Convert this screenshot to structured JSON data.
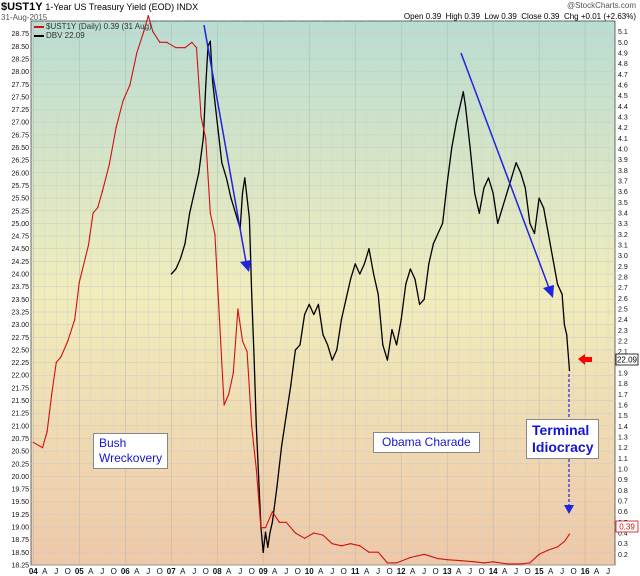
{
  "header": {
    "symbol": "$UST1Y",
    "title": "1-Year US Treasury Yield (EOD) INDX",
    "date": "31-Aug-2015",
    "source": "@StockCharts.com",
    "quote": "Open 0.39  High 0.39  Low 0.39  Close 0.39  Chg +0.01 (+2.63%)"
  },
  "legend": {
    "ust": "$UST1Y (Daily) 0.39 (31 Aug)",
    "dbv": "DBV 22.09"
  },
  "annotations": {
    "bush": [
      "Bush",
      "Wreckovery"
    ],
    "obama": "Obama Charade",
    "terminal": [
      "Terminal",
      "Idiocracy"
    ]
  },
  "last_values": {
    "dbv": "22.09",
    "ust": "0.39"
  },
  "colors": {
    "ust_line": "#d21010",
    "dbv_line": "#000000",
    "arrow": "#1f24e0",
    "marker": "#ff0000",
    "annotation_text": "#1515d0"
  },
  "chart_data": {
    "type": "line",
    "title": "$UST1Y 1-Year US Treasury Yield (EOD) INDX",
    "x_ticks": [
      "04",
      "A",
      "J",
      "O",
      "05",
      "A",
      "J",
      "O",
      "06",
      "A",
      "J",
      "O",
      "07",
      "A",
      "J",
      "O",
      "08",
      "A",
      "J",
      "O",
      "09",
      "A",
      "J",
      "O",
      "10",
      "A",
      "J",
      "O",
      "11",
      "A",
      "J",
      "O",
      "12",
      "A",
      "J",
      "O",
      "13",
      "A",
      "J",
      "O",
      "14",
      "A",
      "J",
      "O",
      "15",
      "A",
      "J",
      "O",
      "16",
      "A",
      "J"
    ],
    "left_axis": {
      "ylim": [
        18.25,
        29.0
      ],
      "ticks": [
        "18.25",
        "18.50",
        "18.75",
        "19.00",
        "19.25",
        "19.50",
        "19.75",
        "20.00",
        "20.25",
        "20.50",
        "20.75",
        "21.00",
        "21.25",
        "21.50",
        "21.75",
        "22.00",
        "22.25",
        "22.50",
        "22.75",
        "23.00",
        "23.25",
        "23.50",
        "23.75",
        "24.00",
        "24.25",
        "24.50",
        "24.75",
        "25.00",
        "25.25",
        "25.50",
        "25.75",
        "26.00",
        "26.25",
        "26.50",
        "26.75",
        "27.00",
        "27.25",
        "27.50",
        "27.75",
        "28.00",
        "28.25",
        "28.50",
        "28.75"
      ]
    },
    "right_axis": {
      "ylim": [
        0.1,
        5.2
      ],
      "ticks": [
        "0.2",
        "0.3",
        "0.4",
        "0.5",
        "0.6",
        "0.7",
        "0.8",
        "0.9",
        "1.0",
        "1.1",
        "1.2",
        "1.3",
        "1.4",
        "1.5",
        "1.6",
        "1.7",
        "1.8",
        "1.9",
        "2.0",
        "2.1",
        "2.2",
        "2.3",
        "2.4",
        "2.5",
        "2.6",
        "2.7",
        "2.8",
        "2.9",
        "3.0",
        "3.1",
        "3.2",
        "3.3",
        "3.4",
        "3.5",
        "3.6",
        "3.7",
        "3.8",
        "3.9",
        "4.0",
        "4.1",
        "4.2",
        "4.3",
        "4.4",
        "4.5",
        "4.6",
        "4.7",
        "4.8",
        "4.9",
        "5.0",
        "5.1"
      ]
    },
    "series": [
      {
        "name": "$UST1Y (Daily)",
        "axis": "right",
        "points": [
          [
            2004.0,
            1.25
          ],
          [
            2004.2,
            1.2
          ],
          [
            2004.3,
            1.35
          ],
          [
            2004.4,
            1.7
          ],
          [
            2004.5,
            2.0
          ],
          [
            2004.6,
            2.05
          ],
          [
            2004.75,
            2.2
          ],
          [
            2004.9,
            2.4
          ],
          [
            2005.0,
            2.75
          ],
          [
            2005.2,
            3.1
          ],
          [
            2005.3,
            3.4
          ],
          [
            2005.4,
            3.45
          ],
          [
            2005.5,
            3.6
          ],
          [
            2005.65,
            3.85
          ],
          [
            2005.8,
            4.2
          ],
          [
            2005.95,
            4.45
          ],
          [
            2006.1,
            4.6
          ],
          [
            2006.25,
            4.9
          ],
          [
            2006.4,
            5.1
          ],
          [
            2006.5,
            5.25
          ],
          [
            2006.6,
            5.1
          ],
          [
            2006.75,
            5.0
          ],
          [
            2006.9,
            5.0
          ],
          [
            2007.1,
            4.95
          ],
          [
            2007.3,
            4.95
          ],
          [
            2007.45,
            5.0
          ],
          [
            2007.55,
            4.95
          ],
          [
            2007.65,
            4.3
          ],
          [
            2007.75,
            4.1
          ],
          [
            2007.85,
            3.4
          ],
          [
            2007.95,
            3.2
          ],
          [
            2008.05,
            2.4
          ],
          [
            2008.15,
            1.6
          ],
          [
            2008.25,
            1.7
          ],
          [
            2008.35,
            1.9
          ],
          [
            2008.45,
            2.5
          ],
          [
            2008.55,
            2.2
          ],
          [
            2008.65,
            2.1
          ],
          [
            2008.75,
            1.4
          ],
          [
            2008.85,
            1.0
          ],
          [
            2008.95,
            0.45
          ],
          [
            2009.05,
            0.45
          ],
          [
            2009.2,
            0.6
          ],
          [
            2009.35,
            0.5
          ],
          [
            2009.5,
            0.5
          ],
          [
            2009.7,
            0.4
          ],
          [
            2009.9,
            0.35
          ],
          [
            2010.1,
            0.4
          ],
          [
            2010.3,
            0.38
          ],
          [
            2010.5,
            0.3
          ],
          [
            2010.7,
            0.28
          ],
          [
            2010.9,
            0.3
          ],
          [
            2011.1,
            0.28
          ],
          [
            2011.3,
            0.22
          ],
          [
            2011.5,
            0.22
          ],
          [
            2011.7,
            0.12
          ],
          [
            2011.9,
            0.12
          ],
          [
            2012.2,
            0.17
          ],
          [
            2012.5,
            0.2
          ],
          [
            2012.8,
            0.16
          ],
          [
            2013.0,
            0.15
          ],
          [
            2013.3,
            0.14
          ],
          [
            2013.6,
            0.13
          ],
          [
            2013.8,
            0.12
          ],
          [
            2014.0,
            0.13
          ],
          [
            2014.3,
            0.11
          ],
          [
            2014.6,
            0.11
          ],
          [
            2014.8,
            0.12
          ],
          [
            2015.0,
            0.2
          ],
          [
            2015.2,
            0.24
          ],
          [
            2015.4,
            0.27
          ],
          [
            2015.55,
            0.32
          ],
          [
            2015.66,
            0.39
          ]
        ]
      },
      {
        "name": "DBV",
        "axis": "left",
        "points": [
          [
            2007.0,
            24.0
          ],
          [
            2007.1,
            24.1
          ],
          [
            2007.2,
            24.3
          ],
          [
            2007.3,
            24.6
          ],
          [
            2007.4,
            25.2
          ],
          [
            2007.5,
            25.6
          ],
          [
            2007.6,
            26.0
          ],
          [
            2007.7,
            26.7
          ],
          [
            2007.75,
            27.7
          ],
          [
            2007.8,
            28.5
          ],
          [
            2007.85,
            28.6
          ],
          [
            2007.9,
            27.8
          ],
          [
            2008.0,
            27.0
          ],
          [
            2008.1,
            26.2
          ],
          [
            2008.2,
            25.9
          ],
          [
            2008.3,
            25.5
          ],
          [
            2008.4,
            25.2
          ],
          [
            2008.5,
            24.9
          ],
          [
            2008.55,
            25.6
          ],
          [
            2008.6,
            25.9
          ],
          [
            2008.7,
            25.1
          ],
          [
            2008.75,
            23.6
          ],
          [
            2008.8,
            22.4
          ],
          [
            2008.85,
            21.0
          ],
          [
            2008.9,
            20.0
          ],
          [
            2008.95,
            19.0
          ],
          [
            2009.0,
            18.5
          ],
          [
            2009.05,
            18.9
          ],
          [
            2009.1,
            18.6
          ],
          [
            2009.15,
            18.9
          ],
          [
            2009.2,
            19.1
          ],
          [
            2009.3,
            19.8
          ],
          [
            2009.4,
            20.6
          ],
          [
            2009.5,
            21.2
          ],
          [
            2009.6,
            21.8
          ],
          [
            2009.7,
            22.5
          ],
          [
            2009.8,
            22.6
          ],
          [
            2009.9,
            23.2
          ],
          [
            2010.0,
            23.4
          ],
          [
            2010.1,
            23.2
          ],
          [
            2010.2,
            23.4
          ],
          [
            2010.3,
            22.8
          ],
          [
            2010.4,
            22.6
          ],
          [
            2010.5,
            22.3
          ],
          [
            2010.6,
            22.5
          ],
          [
            2010.7,
            23.1
          ],
          [
            2010.8,
            23.5
          ],
          [
            2010.9,
            23.9
          ],
          [
            2011.0,
            24.2
          ],
          [
            2011.1,
            24.0
          ],
          [
            2011.2,
            24.2
          ],
          [
            2011.3,
            24.5
          ],
          [
            2011.4,
            24.0
          ],
          [
            2011.5,
            23.6
          ],
          [
            2011.6,
            22.6
          ],
          [
            2011.7,
            22.3
          ],
          [
            2011.8,
            22.9
          ],
          [
            2011.9,
            22.6
          ],
          [
            2012.0,
            23.1
          ],
          [
            2012.1,
            23.8
          ],
          [
            2012.2,
            24.1
          ],
          [
            2012.3,
            23.9
          ],
          [
            2012.4,
            23.4
          ],
          [
            2012.5,
            23.5
          ],
          [
            2012.6,
            24.2
          ],
          [
            2012.7,
            24.6
          ],
          [
            2012.8,
            24.8
          ],
          [
            2012.9,
            25.0
          ],
          [
            2013.0,
            25.8
          ],
          [
            2013.1,
            26.5
          ],
          [
            2013.2,
            27.0
          ],
          [
            2013.3,
            27.4
          ],
          [
            2013.35,
            27.6
          ],
          [
            2013.4,
            27.3
          ],
          [
            2013.5,
            26.5
          ],
          [
            2013.6,
            25.6
          ],
          [
            2013.7,
            25.2
          ],
          [
            2013.8,
            25.7
          ],
          [
            2013.9,
            25.9
          ],
          [
            2014.0,
            25.6
          ],
          [
            2014.1,
            25.0
          ],
          [
            2014.2,
            25.3
          ],
          [
            2014.3,
            25.6
          ],
          [
            2014.4,
            25.9
          ],
          [
            2014.5,
            26.2
          ],
          [
            2014.6,
            26.0
          ],
          [
            2014.7,
            25.7
          ],
          [
            2014.8,
            25.0
          ],
          [
            2014.9,
            24.8
          ],
          [
            2015.0,
            25.5
          ],
          [
            2015.1,
            25.3
          ],
          [
            2015.2,
            24.8
          ],
          [
            2015.3,
            24.3
          ],
          [
            2015.4,
            23.8
          ],
          [
            2015.5,
            23.6
          ],
          [
            2015.55,
            23.0
          ],
          [
            2015.6,
            22.8
          ],
          [
            2015.66,
            22.09
          ]
        ]
      }
    ],
    "grid": "on",
    "legend_position": "top-left"
  }
}
